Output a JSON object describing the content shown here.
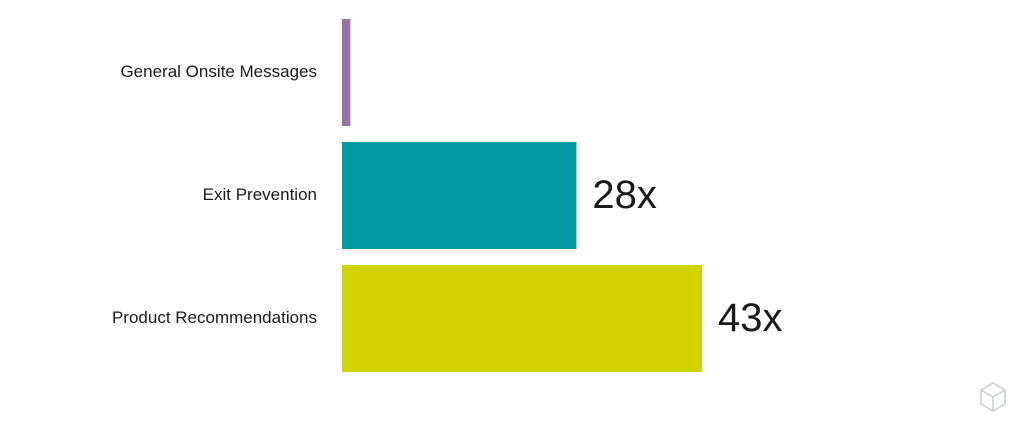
{
  "chart_data": {
    "type": "bar",
    "orientation": "horizontal",
    "categories": [
      "General Onsite Messages",
      "Exit Prevention",
      "Product Recommendations"
    ],
    "values": [
      1,
      28,
      43
    ],
    "value_labels": [
      null,
      "28x",
      "43x"
    ],
    "colors": [
      "#9b72a8",
      "#0499a3",
      "#d3d300"
    ]
  }
}
